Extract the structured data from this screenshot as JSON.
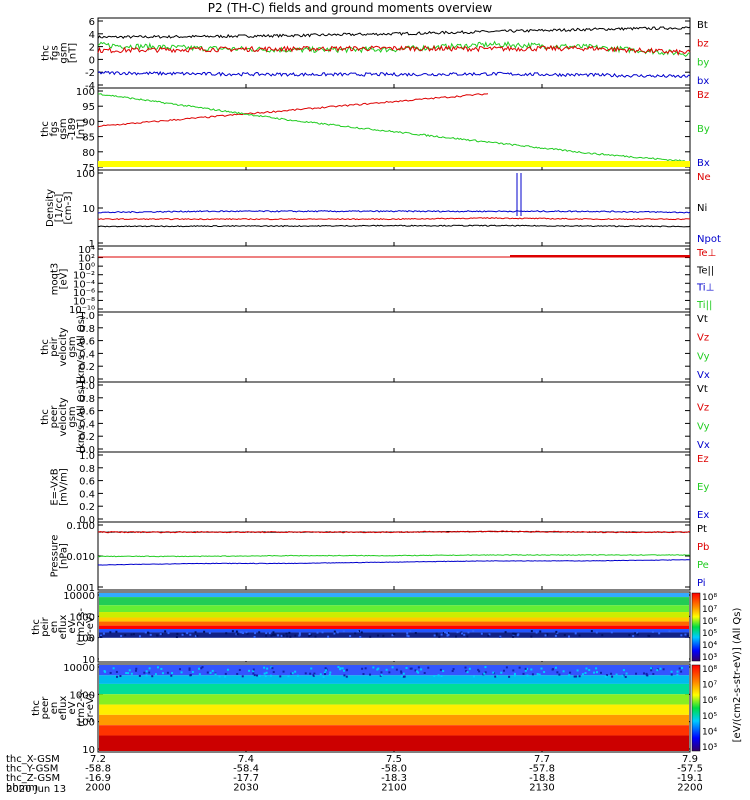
{
  "title": "P2 (TH-C) fields and ground moments overview",
  "colors": {
    "black": "#000000",
    "red": "#dd0000",
    "green": "#22cc22",
    "blue": "#0000cc",
    "yellow": "#ffff00"
  },
  "colorbar_label": "[eV/(cm2-s-str-eV)] (All Qs)",
  "panels": [
    {
      "id": "fgs-dsl",
      "ylabel": [
        "thc",
        "fgs",
        "gsm",
        "[nT]"
      ],
      "yticks": [
        "6",
        "4",
        "2",
        "0",
        "-2",
        "-4"
      ],
      "legend": [
        {
          "t": "Bt",
          "c": "black"
        },
        {
          "t": "bz",
          "c": "red"
        },
        {
          "t": "by",
          "c": "green"
        },
        {
          "t": "bx",
          "c": "blue"
        }
      ]
    },
    {
      "id": "fgs-gse",
      "ylabel": [
        "thc",
        "fgs",
        "gsm",
        "-189",
        "[nT]"
      ],
      "yticks": [
        "100",
        "95",
        "90",
        "85",
        "80",
        "75"
      ],
      "legend": [
        {
          "t": "Bz",
          "c": "red"
        },
        {
          "t": "By",
          "c": "green"
        },
        {
          "t": "Bx",
          "c": "blue"
        }
      ]
    },
    {
      "id": "density",
      "ylabel": [
        "Density",
        "[1/cc]",
        "[cm-3]"
      ],
      "yticks": [
        "100",
        "10",
        "1"
      ],
      "legend": [
        {
          "t": "Ne",
          "c": "red"
        },
        {
          "t": "Ni",
          "c": "black"
        },
        {
          "t": "Npot",
          "c": "blue"
        }
      ]
    },
    {
      "id": "temperature",
      "ylabel": [
        "moqt3",
        "[eV]"
      ],
      "yticks": [
        "10⁴",
        "10²",
        "10⁰",
        "10⁻²",
        "10⁻⁴",
        "10⁻⁶",
        "10⁻⁸",
        "10⁻¹⁰"
      ],
      "legend": [
        {
          "t": "Te⊥",
          "c": "red"
        },
        {
          "t": "Te||",
          "c": "black"
        },
        {
          "t": "Ti⊥",
          "c": "blue"
        },
        {
          "t": "Ti||",
          "c": "green"
        }
      ]
    },
    {
      "id": "peir-velocity",
      "ylabel": [
        "thc",
        "peir",
        "velocity",
        "gsm",
        "[km/s (All Qs)]"
      ],
      "yticks": [
        "1.0",
        "0.8",
        "0.6",
        "0.4",
        "0.2",
        "0.0"
      ],
      "legend": [
        {
          "t": "Vt",
          "c": "black"
        },
        {
          "t": "Vz",
          "c": "red"
        },
        {
          "t": "Vy",
          "c": "green"
        },
        {
          "t": "Vx",
          "c": "blue"
        }
      ]
    },
    {
      "id": "peer-velocity",
      "ylabel": [
        "thc",
        "peer",
        "velocity",
        "gsm",
        "[km/s (All Qs)]"
      ],
      "yticks": [
        "1.0",
        "0.8",
        "0.6",
        "0.4",
        "0.2",
        "0.0"
      ],
      "legend": [
        {
          "t": "Vt",
          "c": "black"
        },
        {
          "t": "Vz",
          "c": "red"
        },
        {
          "t": "Vy",
          "c": "green"
        },
        {
          "t": "Vx",
          "c": "blue"
        }
      ]
    },
    {
      "id": "efield",
      "ylabel": [
        "E=-VxB",
        "[mV/m]"
      ],
      "yticks": [
        "1.0",
        "0.8",
        "0.6",
        "0.4",
        "0.2",
        "0.0"
      ],
      "legend": [
        {
          "t": "Ez",
          "c": "red"
        },
        {
          "t": "Ey",
          "c": "green"
        },
        {
          "t": "Ex",
          "c": "blue"
        }
      ]
    },
    {
      "id": "pressure",
      "ylabel": [
        "Pressure",
        "[nPa]"
      ],
      "yticks": [
        "0.100",
        "0.010",
        "0.001"
      ],
      "legend": [
        {
          "t": "Pt",
          "c": "black"
        },
        {
          "t": "Pb",
          "c": "red"
        },
        {
          "t": "Pe",
          "c": "green"
        },
        {
          "t": "Pi",
          "c": "blue"
        }
      ]
    },
    {
      "id": "peir-spec",
      "ylabel": [
        "thc",
        "peir",
        "en",
        "eflux",
        "eV",
        "(cm2-s-",
        "sr-eV)"
      ],
      "yticks": [
        "10000",
        "1000",
        "100",
        "10"
      ],
      "legend": []
    },
    {
      "id": "peer-spec",
      "ylabel": [
        "thc",
        "peer",
        "en",
        "eflux",
        "eV",
        "(cm2-s-",
        "sr-eV)"
      ],
      "yticks": [
        "10000",
        "1000",
        "100",
        "10"
      ],
      "legend": []
    }
  ],
  "colorbar_ticks": [
    "10⁸",
    "10⁷",
    "10⁶",
    "10⁵",
    "10⁴",
    "10³"
  ],
  "xaxis_rows": [
    {
      "label": "thc_X-GSM",
      "values": [
        "7.2",
        "7.4",
        "7.5",
        "7.7",
        "7.9"
      ]
    },
    {
      "label": "thc_Y-GSM",
      "values": [
        "-58.8",
        "-58.4",
        "-58.0",
        "-57.8",
        "-57.5"
      ]
    },
    {
      "label": "thc_Z-GSM",
      "values": [
        "-16.9",
        "-17.7",
        "-18.3",
        "-18.8",
        "-19.1"
      ]
    },
    {
      "label": "hhmm",
      "values": [
        "2000",
        "2030",
        "2100",
        "2130",
        "2200"
      ]
    }
  ],
  "date": "2020 Jun 13",
  "chart_data": {
    "type": "line",
    "time_range": [
      "2000",
      "2200"
    ],
    "series": [
      {
        "panel": "fgs-dsl",
        "name": "Bt",
        "values": [
          3.6,
          3.7,
          3.9,
          4.2,
          4.6,
          5.0,
          5.3
        ]
      },
      {
        "panel": "fgs-dsl",
        "name": "bz",
        "values": [
          1.2,
          1.4,
          1.5,
          1.6,
          1.5,
          1.6,
          0.8
        ]
      },
      {
        "panel": "fgs-dsl",
        "name": "by",
        "values": [
          2.2,
          1.6,
          1.3,
          1.4,
          2.3,
          1.8,
          0.6
        ]
      },
      {
        "panel": "fgs-dsl",
        "name": "bx",
        "values": [
          -2.8,
          -3.0,
          -3.1,
          -3.1,
          -3.0,
          -3.2,
          -3.5
        ]
      },
      {
        "panel": "fgs-gse",
        "name": "Bz",
        "values": [
          88,
          91,
          94,
          97,
          100
        ]
      },
      {
        "panel": "fgs-gse",
        "name": "By",
        "values": [
          100,
          95,
          90,
          86,
          82,
          78,
          75
        ]
      },
      {
        "panel": "density",
        "name": "Npot",
        "values": [
          9,
          10,
          10,
          10,
          10,
          10,
          9
        ]
      },
      {
        "panel": "density",
        "name": "Ne",
        "values": [
          5,
          5,
          5,
          5,
          5.5,
          5,
          5
        ]
      },
      {
        "panel": "density",
        "name": "Ni",
        "values": [
          2.6,
          2.7,
          2.7,
          2.8,
          2.8,
          2.7,
          2.6
        ]
      },
      {
        "panel": "pressure",
        "name": "Pt",
        "values": [
          0.15,
          0.15,
          0.15,
          0.15,
          0.16,
          0.15,
          0.15
        ]
      },
      {
        "panel": "pressure",
        "name": "Pb",
        "values": [
          0.15,
          0.15,
          0.15,
          0.15,
          0.16,
          0.15,
          0.15
        ]
      },
      {
        "panel": "pressure",
        "name": "Pe",
        "values": [
          0.014,
          0.014,
          0.015,
          0.015,
          0.016,
          0.016,
          0.016
        ]
      },
      {
        "panel": "pressure",
        "name": "Pi",
        "values": [
          0.006,
          0.007,
          0.007,
          0.008,
          0.009,
          0.009,
          0.01
        ]
      }
    ]
  }
}
